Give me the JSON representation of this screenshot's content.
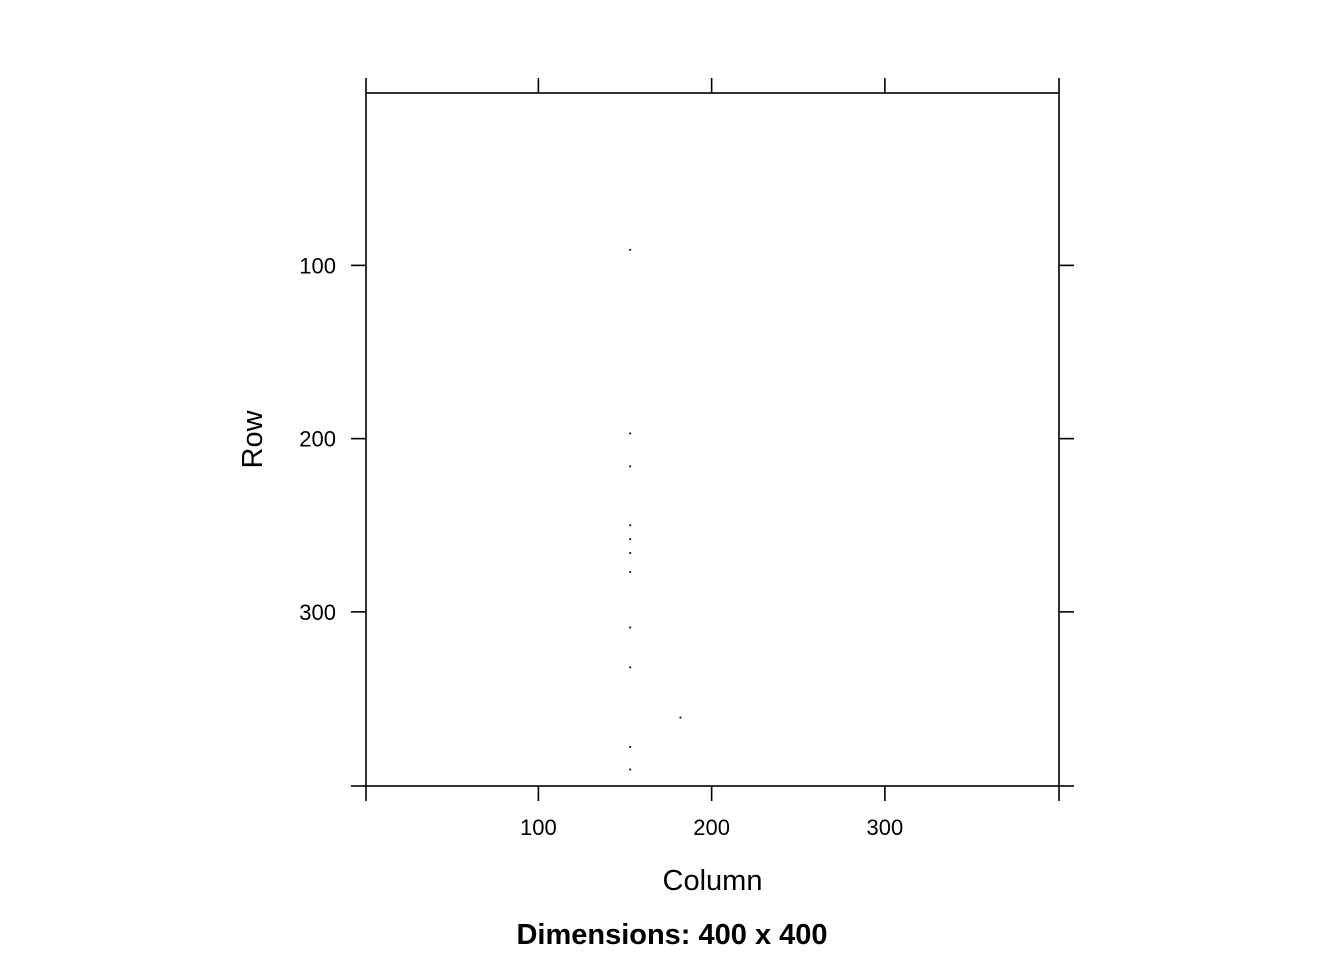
{
  "chart_data": {
    "type": "scatter",
    "title": "",
    "xlabel": "Column",
    "ylabel": "Row",
    "caption": "Dimensions: 400 x 400",
    "xlim": [
      0.5,
      400.5
    ],
    "ylim": [
      400.5,
      0.5
    ],
    "y_reversed": true,
    "x_ticks": [
      100,
      200,
      300
    ],
    "y_ticks": [
      100,
      200,
      300
    ],
    "grid": false,
    "point_color": "#000000",
    "series": [
      {
        "points": [
          {
            "x": 153,
            "y": 91
          },
          {
            "x": 153,
            "y": 197
          },
          {
            "x": 153,
            "y": 216
          },
          {
            "x": 153,
            "y": 250
          },
          {
            "x": 153,
            "y": 258
          },
          {
            "x": 153,
            "y": 266
          },
          {
            "x": 153,
            "y": 277
          },
          {
            "x": 153,
            "y": 309
          },
          {
            "x": 153,
            "y": 332
          },
          {
            "x": 182,
            "y": 361
          },
          {
            "x": 153,
            "y": 378
          },
          {
            "x": 153,
            "y": 391
          }
        ]
      }
    ]
  }
}
